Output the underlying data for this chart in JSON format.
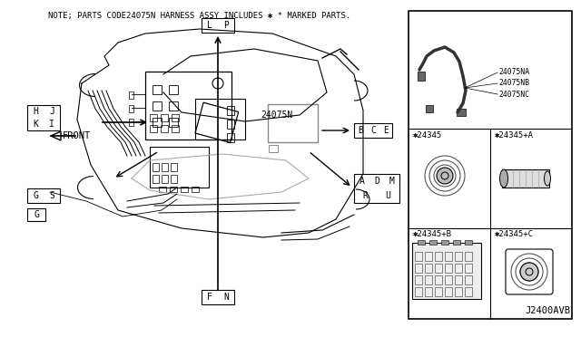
{
  "bg_color": "#ffffff",
  "line_color": "#000000",
  "note_text": "NOTE; PARTS CODE24075N HARNESS ASSY INCLUDES ✱ * MARKED PARTS.",
  "label_24075N": "24075N",
  "label_front": "FRONT",
  "bottom_label": "J2400AVB",
  "gray_color": "#888888",
  "right_panel_labels": {
    "wire": [
      "24075NA",
      "24075NB",
      "24075NC"
    ],
    "p24345": "✱24345",
    "p24345A": "✱24345+A",
    "p24345B": "✱24345+B",
    "p24345C": "✱24345+C"
  }
}
